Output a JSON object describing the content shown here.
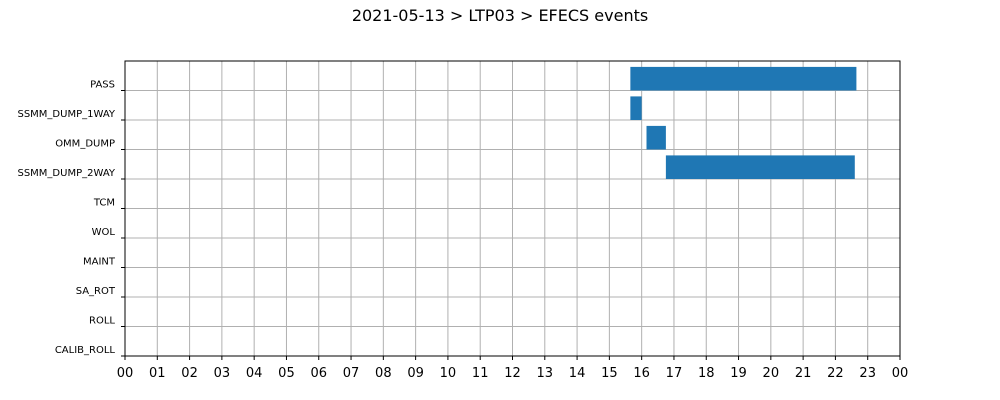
{
  "chart_data": {
    "type": "bar",
    "orientation": "horizontal",
    "title": "2021-05-13 > LTP03 > EFECS events",
    "xlabel": "",
    "ylabel": "",
    "categories": [
      "PASS",
      "SSMM_DUMP_1WAY",
      "OMM_DUMP",
      "SSMM_DUMP_2WAY",
      "TCM",
      "WOL",
      "MAINT",
      "SA_ROT",
      "ROLL",
      "CALIB_ROLL"
    ],
    "xtick_labels": [
      "00",
      "01",
      "02",
      "03",
      "04",
      "05",
      "06",
      "07",
      "08",
      "09",
      "10",
      "11",
      "12",
      "13",
      "14",
      "15",
      "16",
      "17",
      "18",
      "19",
      "20",
      "21",
      "22",
      "23",
      "00"
    ],
    "xlim_hours": [
      0,
      24
    ],
    "grid": true,
    "bar_color": "#1f77b4",
    "events": [
      {
        "category": "PASS",
        "start_hour": 15.65,
        "end_hour": 22.65
      },
      {
        "category": "SSMM_DUMP_1WAY",
        "start_hour": 15.65,
        "end_hour": 16.0
      },
      {
        "category": "OMM_DUMP",
        "start_hour": 16.15,
        "end_hour": 16.75
      },
      {
        "category": "SSMM_DUMP_2WAY",
        "start_hour": 16.75,
        "end_hour": 22.6
      }
    ]
  }
}
